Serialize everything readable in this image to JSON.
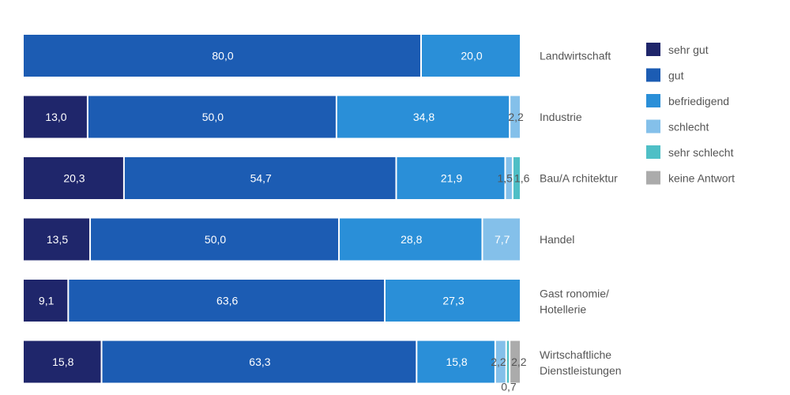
{
  "chart_data": {
    "type": "bar",
    "orientation": "horizontal",
    "stacked": true,
    "xlim": [
      0,
      100
    ],
    "categories": [
      [
        "Landwirtschaft"
      ],
      [
        "Industrie"
      ],
      [
        "Bau/A rchitektur"
      ],
      [
        "Handel"
      ],
      [
        "Gast ronomie/",
        "Hotellerie"
      ],
      [
        "Wirtschaftliche",
        "Dienstleistungen"
      ]
    ],
    "series": [
      {
        "name": "sehr gut",
        "color": "#1f266b",
        "values": [
          null,
          13.0,
          20.3,
          13.5,
          9.1,
          15.8
        ],
        "labels": [
          "",
          "13,0",
          "20,3",
          "13,5",
          "9,1",
          "15,8"
        ]
      },
      {
        "name": "gut",
        "color": "#1c5cb3",
        "values": [
          80.0,
          50.0,
          54.7,
          50.0,
          63.6,
          63.3
        ],
        "labels": [
          "80,0",
          "50,0",
          "54,7",
          "50,0",
          "63,6",
          "63,3"
        ]
      },
      {
        "name": "befriedigend",
        "color": "#2a8fd8",
        "values": [
          20.0,
          34.8,
          21.9,
          28.8,
          27.3,
          15.8
        ],
        "labels": [
          "20,0",
          "34,8",
          "21,9",
          "28,8",
          "27,3",
          "15,8"
        ]
      },
      {
        "name": "schlecht",
        "color": "#84c0ea",
        "values": [
          null,
          2.2,
          1.5,
          7.7,
          null,
          2.2
        ],
        "labels": [
          "",
          "2,2",
          "1,5",
          "7,7",
          "",
          "2,2"
        ]
      },
      {
        "name": "sehr schlecht",
        "color": "#4fbfc6",
        "values": [
          null,
          null,
          1.6,
          null,
          null,
          0.7
        ],
        "labels": [
          "",
          "",
          "1,6",
          "",
          "",
          "0,7"
        ]
      },
      {
        "name": "keine Antwort",
        "color": "#ababab",
        "values": [
          null,
          null,
          null,
          null,
          null,
          2.2
        ],
        "labels": [
          "",
          "",
          "",
          "",
          "",
          "2,2"
        ]
      }
    ],
    "legend_position": "right"
  }
}
